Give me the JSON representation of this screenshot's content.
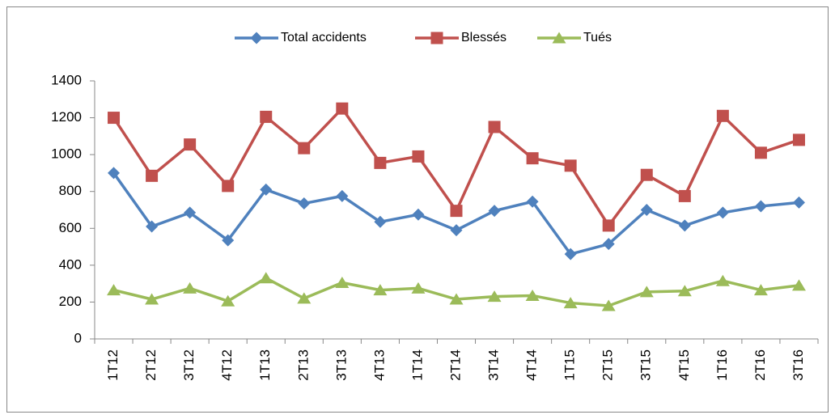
{
  "chart_data": {
    "type": "line",
    "categories": [
      "1T12",
      "2T12",
      "3T12",
      "4T12",
      "1T13",
      "2T13",
      "3T13",
      "4T13",
      "1T14",
      "2T14",
      "3T14",
      "4T14",
      "1T15",
      "2T15",
      "3T15",
      "4T15",
      "1T16",
      "2T16",
      "3T16"
    ],
    "series": [
      {
        "name": "Total accidents",
        "color": "#4f81bd",
        "marker": "diamond",
        "values": [
          900,
          610,
          685,
          535,
          810,
          735,
          775,
          635,
          675,
          590,
          695,
          745,
          460,
          515,
          700,
          615,
          685,
          720,
          740
        ]
      },
      {
        "name": "Blessés",
        "color": "#c0504d",
        "marker": "square",
        "values": [
          1200,
          885,
          1055,
          830,
          1205,
          1035,
          1250,
          955,
          990,
          695,
          1150,
          980,
          940,
          615,
          890,
          775,
          1210,
          1010,
          1080
        ]
      },
      {
        "name": "Tués",
        "color": "#9bbb59",
        "marker": "triangle",
        "values": [
          265,
          215,
          275,
          205,
          330,
          220,
          305,
          265,
          275,
          215,
          230,
          235,
          195,
          180,
          255,
          260,
          315,
          265,
          290
        ]
      }
    ],
    "ylim": [
      0,
      1400
    ],
    "yticks": [
      0,
      200,
      400,
      600,
      800,
      1000,
      1200,
      1400
    ],
    "grid": false,
    "legend": "top"
  }
}
